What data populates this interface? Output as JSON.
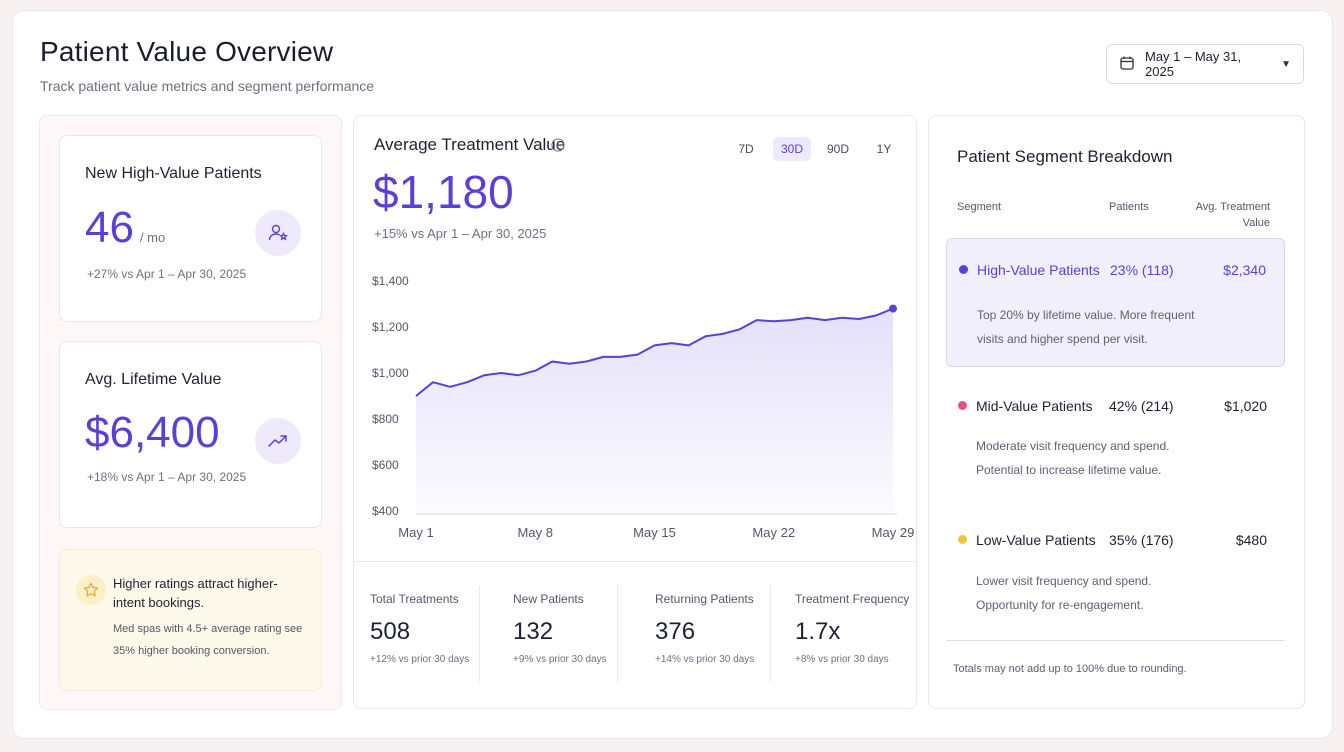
{
  "header": {
    "title": "Patient Value Overview",
    "subtitle": "Track patient value metrics and segment performance",
    "date_range": "May 1 – May 31, 2025",
    "calendar_icon": "calendar-icon",
    "caret_icon": "caret-down-icon"
  },
  "cards": {
    "high_value": {
      "label": "New High-Value Patients",
      "value": "46",
      "unit": "/ mo",
      "delta": "+27% vs Apr 1 – Apr 30, 2025",
      "icon": "user-star-icon"
    },
    "lifetime": {
      "label": "Avg. Lifetime Value",
      "value": "$6,400",
      "delta": "+18% vs Apr 1 – Apr 30, 2025",
      "icon": "trend-up-icon"
    },
    "tip": {
      "title": "Higher ratings attract higher-intent bookings.",
      "body": "Med spas with 4.5+ average rating see 35% higher booking conversion.",
      "icon": "star-icon"
    }
  },
  "treatment": {
    "title": "Average Treatment Value",
    "value": "$1,180",
    "delta": "+15% vs Apr 1 – Apr 30, 2025",
    "tabs": [
      "7D",
      "30D",
      "90D",
      "1Y"
    ],
    "active_tab": "30D"
  },
  "chart_data": {
    "type": "area",
    "x_ticks": [
      "May 1",
      "May 8",
      "May 15",
      "May 22",
      "May 29"
    ],
    "y_ticks": [
      "$1,400",
      "$1,200",
      "$1,000",
      "$800",
      "$600",
      "$400"
    ],
    "ylim": [
      400,
      1400
    ],
    "x": [
      1,
      2,
      3,
      4,
      5,
      6,
      7,
      8,
      9,
      10,
      11,
      12,
      13,
      14,
      15,
      16,
      17,
      18,
      19,
      20,
      21,
      22,
      23,
      24,
      25,
      26,
      27,
      28,
      29
    ],
    "values": [
      900,
      960,
      940,
      960,
      990,
      1000,
      990,
      1010,
      1050,
      1040,
      1050,
      1070,
      1070,
      1080,
      1120,
      1130,
      1120,
      1160,
      1170,
      1190,
      1230,
      1225,
      1230,
      1240,
      1230,
      1240,
      1235,
      1250,
      1280
    ],
    "series_color": "#5b3fd8"
  },
  "metrics": [
    {
      "label": "Total Treatments",
      "value": "508",
      "delta": "+12% vs prior 30 days"
    },
    {
      "label": "New Patients",
      "value": "132",
      "delta": "+9%  vs prior 30 days"
    },
    {
      "label": "Returning Patients",
      "value": "376",
      "delta": "+14%  vs prior 30 days"
    },
    {
      "label": "Treatment Frequency",
      "value": "1.7x",
      "delta": "+8%  vs prior 30 days"
    }
  ],
  "segments": {
    "title": "Patient Segment Breakdown",
    "col_segment": "Segment",
    "col_patients": "Patients",
    "col_value": "Avg. Treatment Value",
    "items": [
      {
        "name": "High-Value Patients",
        "pct": "23% (118)",
        "value": "$2,340",
        "desc": "Top 20% by lifetime value. More frequent visits and higher spend per visit.",
        "color": "#5b3fd8"
      },
      {
        "name": "Mid-Value Patients",
        "pct": "42% (214)",
        "value": "$1,020",
        "desc": "Moderate visit frequency and spend. Potential to increase lifetime value.",
        "color": "#e9508a"
      },
      {
        "name": "Low-Value Patients",
        "pct": "35% (176)",
        "value": "$480",
        "desc": "Lower visit frequency and spend. Opportunity for re-engagement.",
        "color": "#f2c534"
      }
    ],
    "note": "Totals may not add up to 100% due to rounding."
  }
}
